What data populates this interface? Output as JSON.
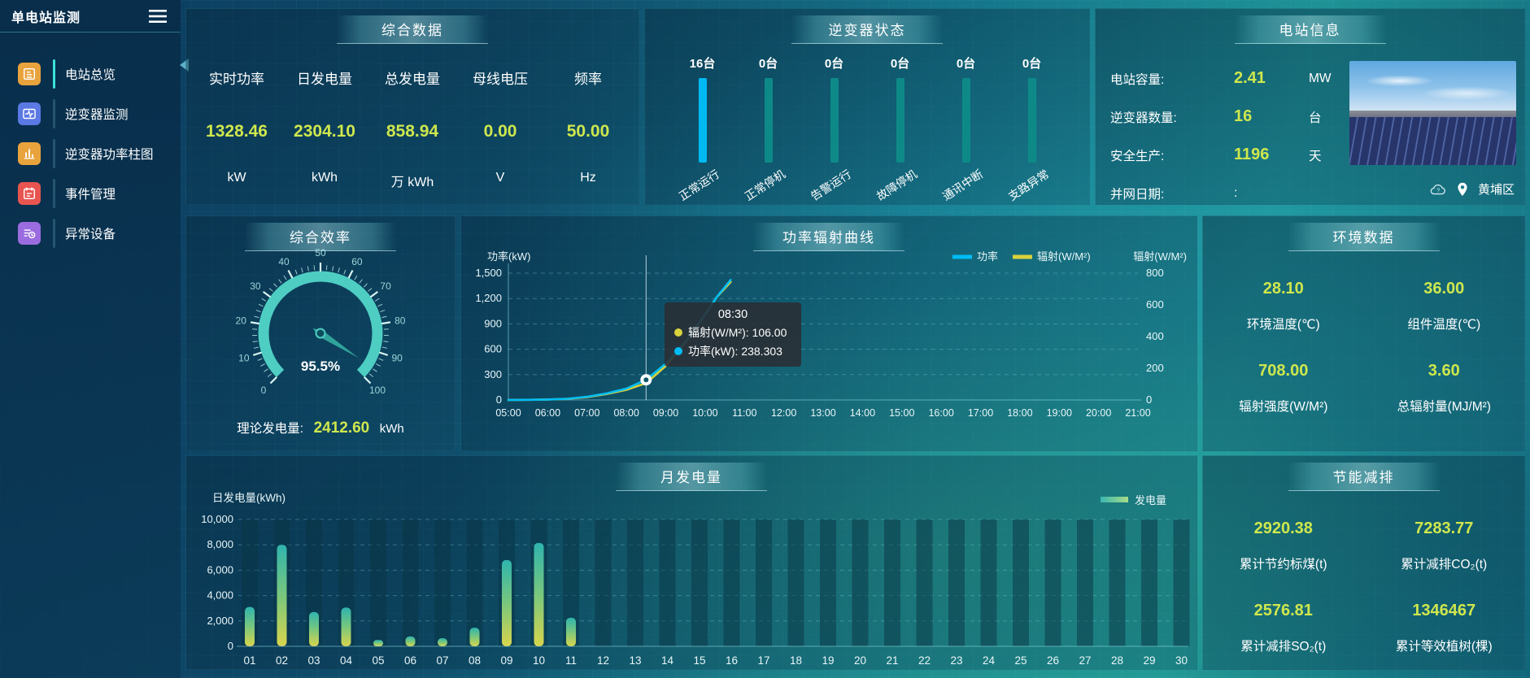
{
  "app": {
    "title": "单电站监测"
  },
  "sidebar": {
    "items": [
      {
        "label": "电站总览",
        "icon": "overview",
        "color": "#e8a33d",
        "active": true
      },
      {
        "label": "逆变器监测",
        "icon": "inverter-monitor",
        "color": "#5b79e3",
        "active": false
      },
      {
        "label": "逆变器功率柱图",
        "icon": "power-bars",
        "color": "#e8a33d",
        "active": false
      },
      {
        "label": "事件管理",
        "icon": "event-management",
        "color": "#e85550",
        "active": false
      },
      {
        "label": "异常设备",
        "icon": "abnormal-devices",
        "color": "#9a6ce0",
        "active": false
      }
    ]
  },
  "panels": {
    "summary": {
      "title": "综合数据",
      "metrics": [
        {
          "label": "实时功率",
          "value": "1328.46",
          "unit": "kW"
        },
        {
          "label": "日发电量",
          "value": "2304.10",
          "unit": "kWh"
        },
        {
          "label": "总发电量",
          "value": "858.94",
          "unit": "万 kWh"
        },
        {
          "label": "母线电压",
          "value": "0.00",
          "unit": "V"
        },
        {
          "label": "频率",
          "value": "50.00",
          "unit": "Hz"
        }
      ]
    },
    "inverter_status": {
      "title": "逆变器状态",
      "bars": [
        {
          "count": "16台",
          "label": "正常运行",
          "highlight": true
        },
        {
          "count": "0台",
          "label": "正常停机",
          "highlight": false
        },
        {
          "count": "0台",
          "label": "告警运行",
          "highlight": false
        },
        {
          "count": "0台",
          "label": "故障停机",
          "highlight": false
        },
        {
          "count": "0台",
          "label": "通讯中断",
          "highlight": false
        },
        {
          "count": "0台",
          "label": "支路异常",
          "highlight": false
        }
      ],
      "highlight_color": "#00b9f2",
      "normal_color": "#0d8a88"
    },
    "station_info": {
      "title": "电站信息",
      "rows": [
        {
          "label": "电站容量:",
          "value": "2.41",
          "unit": "MW"
        },
        {
          "label": "逆变器数量:",
          "value": "16",
          "unit": "台"
        },
        {
          "label": "安全生产:",
          "value": "1196",
          "unit": "天"
        },
        {
          "label": "并网日期:",
          "value": ":",
          "unit": ""
        }
      ],
      "location": "黄埔区"
    },
    "efficiency": {
      "title": "综合效率",
      "gauge_display": "95.5%",
      "theory_label": "理论发电量:",
      "theory_value": "2412.60",
      "theory_unit": "kWh"
    },
    "power_curve": {
      "title": "功率辐射曲线",
      "tooltip": {
        "time": "08:30",
        "rows": [
          {
            "color": "#d8d33c",
            "text": "辐射(W/M²): 106.00"
          },
          {
            "color": "#00bdf4",
            "text": "功率(kW): 238.303"
          }
        ]
      }
    },
    "environment": {
      "title": "环境数据",
      "cells": [
        {
          "value": "28.10",
          "label": "环境温度(℃)"
        },
        {
          "value": "36.00",
          "label": "组件温度(℃)"
        },
        {
          "value": "708.00",
          "label": "辐射强度(W/M²)"
        },
        {
          "value": "3.60",
          "label": "总辐射量(MJ/M²)"
        }
      ]
    },
    "monthly": {
      "title": "月发电量"
    },
    "saving": {
      "title": "节能减排",
      "cells": [
        {
          "value": "2920.38",
          "label": "累计节约标煤(t)"
        },
        {
          "value": "7283.77",
          "label": "累计减排CO₂(t)"
        },
        {
          "value": "2576.81",
          "label": "累计减排SO₂(t)"
        },
        {
          "value": "1346467",
          "label": "累计等效植树(棵)"
        }
      ]
    }
  },
  "chart_data": [
    {
      "id": "power_radiation",
      "type": "line",
      "title": "功率辐射曲线",
      "x_ticks": [
        "05:00",
        "06:00",
        "07:00",
        "08:00",
        "09:00",
        "10:00",
        "11:00",
        "12:00",
        "13:00",
        "14:00",
        "15:00",
        "16:00",
        "17:00",
        "18:00",
        "19:00",
        "20:00",
        "21:00"
      ],
      "x_range": [
        5,
        21
      ],
      "left_axis": {
        "label": "功率(kW)",
        "min": 0,
        "max": 1500,
        "ticks": [
          "0",
          "300",
          "600",
          "900",
          "1,200",
          "1,500"
        ]
      },
      "right_axis": {
        "label": "辐射(W/M²)",
        "min": 0,
        "max": 800,
        "ticks": [
          "0",
          "200",
          "400",
          "600",
          "800"
        ]
      },
      "grid": "dashed",
      "legend_position": "top-right",
      "series": [
        {
          "name": "辐射(W/M²)",
          "axis": "right",
          "color": "#d8d33c",
          "data": [
            [
              5,
              0
            ],
            [
              5.5,
              1
            ],
            [
              6,
              3
            ],
            [
              6.5,
              7
            ],
            [
              7,
              18
            ],
            [
              7.5,
              38
            ],
            [
              8,
              64
            ],
            [
              8.5,
              106
            ],
            [
              9,
              215
            ],
            [
              9.5,
              365
            ],
            [
              10,
              540
            ],
            [
              10.3,
              650
            ],
            [
              10.65,
              745
            ]
          ]
        },
        {
          "name": "功率",
          "axis": "left",
          "color": "#00bdf4",
          "data": [
            [
              5,
              0
            ],
            [
              5.5,
              2
            ],
            [
              6,
              6
            ],
            [
              6.5,
              14
            ],
            [
              7,
              38
            ],
            [
              7.5,
              78
            ],
            [
              8,
              135
            ],
            [
              8.5,
              238.3
            ],
            [
              9,
              430
            ],
            [
              9.5,
              690
            ],
            [
              10,
              1010
            ],
            [
              10.3,
              1220
            ],
            [
              10.65,
              1420
            ]
          ]
        }
      ],
      "hover": {
        "time": "08:30",
        "x": 8.5,
        "power": 238.303,
        "radiation": 106.0
      }
    },
    {
      "id": "monthly_generation",
      "type": "bar",
      "title": "月发电量",
      "ylabel": "日发电量(kWh)",
      "ylim": [
        0,
        10000
      ],
      "yticks": [
        "0",
        "2,000",
        "4,000",
        "6,000",
        "8,000",
        "10,000"
      ],
      "legend": "发电量",
      "categories": [
        "01",
        "02",
        "03",
        "04",
        "05",
        "06",
        "07",
        "08",
        "09",
        "10",
        "11",
        "12",
        "13",
        "14",
        "15",
        "16",
        "17",
        "18",
        "19",
        "20",
        "21",
        "22",
        "23",
        "24",
        "25",
        "26",
        "27",
        "28",
        "29",
        "30"
      ],
      "values": [
        3100,
        8000,
        2700,
        3050,
        500,
        780,
        640,
        1470,
        6800,
        8150,
        2250,
        0,
        0,
        0,
        0,
        0,
        0,
        0,
        0,
        0,
        0,
        0,
        0,
        0,
        0,
        0,
        0,
        0,
        0,
        0
      ],
      "bar_gradient": [
        "#d8d54c",
        "#79c77d",
        "#2fb4ae"
      ]
    },
    {
      "id": "efficiency_gauge",
      "type": "gauge",
      "title": "综合效率",
      "min": 0,
      "max": 100,
      "tick_step": 10,
      "value": 95.5,
      "label": "95.5%",
      "color": "#4ecdc3"
    },
    {
      "id": "inverter_status",
      "type": "bar",
      "categories": [
        "正常运行",
        "正常停机",
        "告警运行",
        "故障停机",
        "通讯中断",
        "支路异常"
      ],
      "values": [
        16,
        0,
        0,
        0,
        0,
        0
      ],
      "unit": "台"
    }
  ]
}
